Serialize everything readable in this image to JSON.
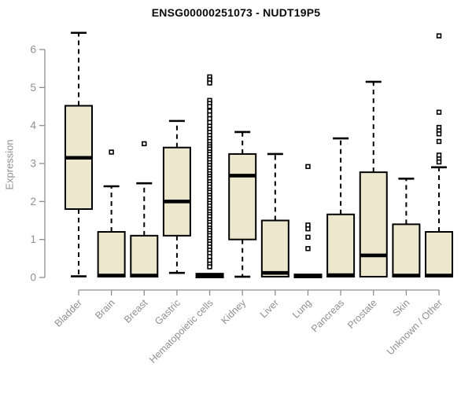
{
  "title": "ENSG00000251073 - NUDT19P5",
  "ylabel": "Expression",
  "colors": {
    "box_fill": "#EDE7CD",
    "box_stroke": "#000000",
    "median": "#000000",
    "whisker": "#000000",
    "outlier_fill": "#FFFFFF",
    "axis": "#8f8f8f",
    "tick_text": "#8f8f8f",
    "title_text": "#0a0a0a",
    "background": "#ffffff"
  },
  "chart_data": {
    "type": "boxplot",
    "title": "ENSG00000251073 - NUDT19P5",
    "xlabel": "",
    "ylabel": "Expression",
    "ylim": [
      0,
      6.6
    ],
    "yticks": [
      0,
      1,
      2,
      3,
      4,
      5,
      6
    ],
    "grid": false,
    "legend": "none",
    "categories": [
      "Bladder",
      "Brain",
      "Breast",
      "Gastric",
      "Hematopoietic cells",
      "Kidney",
      "Liver",
      "Lung",
      "Pancreas",
      "Prostate",
      "Skin",
      "Unknown / Other"
    ],
    "boxes": [
      {
        "label": "Bladder",
        "whislo": 0.03,
        "q1": 1.8,
        "med": 3.15,
        "q3": 4.52,
        "whishi": 6.44,
        "outliers": []
      },
      {
        "label": "Brain",
        "whislo": 0.02,
        "q1": 0.02,
        "med": 0.05,
        "q3": 1.2,
        "whishi": 2.4,
        "outliers": [
          3.3
        ]
      },
      {
        "label": "Breast",
        "whislo": 0.02,
        "q1": 0.02,
        "med": 0.05,
        "q3": 1.1,
        "whishi": 2.48,
        "outliers": [
          3.52
        ]
      },
      {
        "label": "Gastric",
        "whislo": 0.12,
        "q1": 1.1,
        "med": 2.0,
        "q3": 3.42,
        "whishi": 4.12,
        "outliers": []
      },
      {
        "label": "Hematopoietic cells",
        "whislo": 0.0,
        "q1": 0.0,
        "med": 0.04,
        "q3": 0.1,
        "whishi": 0.1,
        "outliers": [
          5.28,
          5.2,
          5.12,
          4.66,
          4.58,
          4.5,
          4.38,
          4.28,
          4.18,
          4.08,
          3.98,
          3.9,
          3.82,
          3.74,
          3.66,
          3.58,
          3.5,
          3.44,
          3.38,
          3.3,
          3.24,
          3.16,
          3.1,
          3.02,
          2.95,
          2.88,
          2.8,
          2.73,
          2.66,
          2.6,
          2.52,
          2.45,
          2.38,
          2.3,
          2.24,
          2.16,
          2.1,
          2.02,
          1.95,
          1.88,
          1.8,
          1.73,
          1.66,
          1.6,
          1.52,
          1.45,
          1.38,
          1.3,
          1.24,
          1.16,
          1.1,
          1.02,
          0.95,
          0.88,
          0.8,
          0.72,
          0.64,
          0.55,
          0.45,
          0.35,
          0.28
        ]
      },
      {
        "label": "Kidney",
        "whislo": 0.02,
        "q1": 1.0,
        "med": 2.68,
        "q3": 3.25,
        "whishi": 3.83,
        "outliers": []
      },
      {
        "label": "Liver",
        "whislo": 0.02,
        "q1": 0.02,
        "med": 0.12,
        "q3": 1.5,
        "whishi": 3.25,
        "outliers": []
      },
      {
        "label": "Lung",
        "whislo": 0.0,
        "q1": 0.0,
        "med": 0.03,
        "q3": 0.08,
        "whishi": 0.08,
        "outliers": [
          2.92,
          1.38,
          1.28,
          1.06,
          0.76
        ]
      },
      {
        "label": "Pancreas",
        "whislo": 0.02,
        "q1": 0.02,
        "med": 0.06,
        "q3": 1.66,
        "whishi": 3.66,
        "outliers": []
      },
      {
        "label": "Prostate",
        "whislo": 0.02,
        "q1": 0.02,
        "med": 0.58,
        "q3": 2.77,
        "whishi": 5.15,
        "outliers": []
      },
      {
        "label": "Skin",
        "whislo": 0.02,
        "q1": 0.02,
        "med": 0.05,
        "q3": 1.4,
        "whishi": 2.6,
        "outliers": []
      },
      {
        "label": "Unknown / Other",
        "whislo": 0.02,
        "q1": 0.02,
        "med": 0.05,
        "q3": 1.2,
        "whishi": 2.9,
        "outliers": [
          6.36,
          4.35,
          3.95,
          3.86,
          3.78,
          3.58,
          3.22,
          3.12,
          3.04
        ]
      }
    ]
  }
}
